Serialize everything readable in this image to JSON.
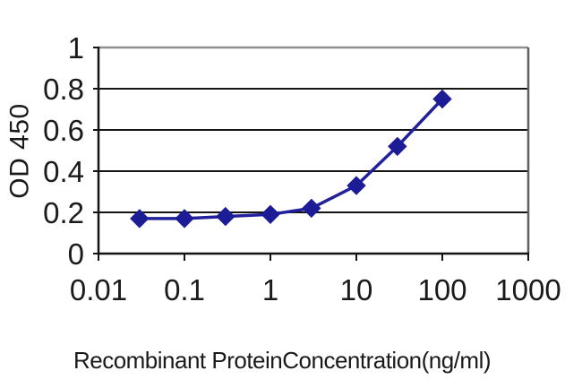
{
  "page": {
    "background": "#ffffff"
  },
  "chart_data": {
    "type": "line",
    "title": "",
    "xlabel": "Recombinant ProteinConcentration(ng/ml)",
    "ylabel": "OD 450",
    "x_scale": "log",
    "xlim": [
      0.01,
      1000
    ],
    "ylim": [
      0,
      1
    ],
    "x_ticks": [
      0.01,
      0.1,
      1,
      10,
      100,
      1000
    ],
    "x_ticklabels": [
      "0.01",
      "0.1",
      "1",
      "10",
      "100",
      "1000"
    ],
    "y_ticks": [
      0,
      0.2,
      0.4,
      0.6,
      0.8,
      1
    ],
    "y_ticklabels": [
      "0",
      "0.2",
      "0.4",
      "0.6",
      "0.8",
      "1"
    ],
    "grid": "horizontal-major",
    "legend": "none",
    "series": [
      {
        "name": "OD 450",
        "marker": "diamond",
        "x": [
          0.03,
          0.1,
          0.3,
          1,
          3,
          10,
          30,
          100
        ],
        "y": [
          0.17,
          0.17,
          0.18,
          0.19,
          0.22,
          0.33,
          0.52,
          0.75
        ]
      }
    ],
    "colors": {
      "series_line": "#21219b",
      "marker_fill": "#1c1c96",
      "gridline": "#141414",
      "axis": "#141414",
      "plot_border_top": "#8f8f8f",
      "plot_border_right": "#5f5f5f",
      "tick_label": "#1a1a1a",
      "background": "#ffffff"
    }
  }
}
